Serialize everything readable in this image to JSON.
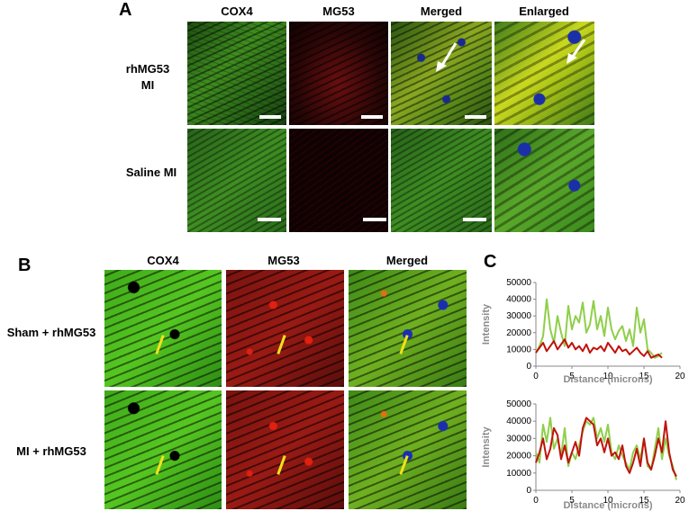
{
  "panel_a": {
    "letter": "A",
    "columns": [
      "COX4",
      "MG53",
      "Merged",
      "Enlarged"
    ],
    "rows": [
      {
        "label_line1": "rhMG53",
        "label_line2": "MI"
      },
      {
        "label_line1": "Saline MI",
        "label_line2": ""
      }
    ]
  },
  "panel_b": {
    "letter": "B",
    "columns": [
      "COX4",
      "MG53",
      "Merged"
    ],
    "rows": [
      {
        "label": "Sham + rhMG53"
      },
      {
        "label": "MI + rhMG53"
      }
    ]
  },
  "panel_c": {
    "letter": "C"
  },
  "colors": {
    "green_series": "#8fcf4a",
    "red_series": "#c0120c",
    "axis": "#888888"
  },
  "chart_data": [
    {
      "type": "line",
      "xlabel": "Distance (microns)",
      "ylabel": "Intensity",
      "xlim": [
        0,
        20
      ],
      "ylim": [
        0,
        50000
      ],
      "xticks": [
        0,
        5,
        10,
        15,
        20
      ],
      "yticks": [
        0,
        10000,
        20000,
        30000,
        40000,
        50000
      ],
      "grid": false,
      "series": [
        {
          "color": "#8fcf4a",
          "x": [
            0,
            0.5,
            1,
            1.5,
            2,
            2.5,
            3,
            3.5,
            4,
            4.5,
            5,
            5.5,
            6,
            6.5,
            7,
            7.5,
            8,
            8.5,
            9,
            9.5,
            10,
            10.5,
            11,
            11.5,
            12,
            12.5,
            13,
            13.5,
            14,
            14.5,
            15,
            15.5,
            16,
            16.5,
            17,
            17.5
          ],
          "values": [
            8000,
            12000,
            18000,
            40000,
            22000,
            14000,
            30000,
            20000,
            12000,
            36000,
            22000,
            30000,
            26000,
            38000,
            20000,
            25000,
            39000,
            22000,
            30000,
            18000,
            35000,
            22000,
            16000,
            21000,
            24000,
            15000,
            22000,
            12000,
            35000,
            20000,
            28000,
            10000,
            8000,
            5000,
            6000,
            8000
          ]
        },
        {
          "color": "#c0120c",
          "x": [
            0,
            0.5,
            1,
            1.5,
            2,
            2.5,
            3,
            3.5,
            4,
            4.5,
            5,
            5.5,
            6,
            6.5,
            7,
            7.5,
            8,
            8.5,
            9,
            9.5,
            10,
            10.5,
            11,
            11.5,
            12,
            12.5,
            13,
            13.5,
            14,
            14.5,
            15,
            15.5,
            16,
            16.5,
            17,
            17.5
          ],
          "values": [
            8000,
            11000,
            14000,
            9000,
            12000,
            15000,
            10000,
            13000,
            16000,
            11000,
            14000,
            10000,
            12000,
            9000,
            13000,
            8000,
            11000,
            10000,
            12000,
            9000,
            14000,
            11000,
            8000,
            12000,
            9000,
            10000,
            7000,
            9000,
            11000,
            8000,
            6000,
            9000,
            5000,
            6000,
            7000,
            5000
          ]
        }
      ]
    },
    {
      "type": "line",
      "xlabel": "Distance (microns)",
      "ylabel": "Intensity",
      "xlim": [
        0,
        20
      ],
      "ylim": [
        0,
        50000
      ],
      "xticks": [
        0,
        5,
        10,
        15,
        20
      ],
      "yticks": [
        0,
        10000,
        20000,
        30000,
        40000,
        50000
      ],
      "grid": false,
      "series": [
        {
          "color": "#8fcf4a",
          "x": [
            0,
            0.5,
            1,
            1.5,
            2,
            2.5,
            3,
            3.5,
            4,
            4.5,
            5,
            5.5,
            6,
            6.5,
            7,
            7.5,
            8,
            8.5,
            9,
            9.5,
            10,
            10.5,
            11,
            11.5,
            12,
            12.5,
            13,
            13.5,
            14,
            14.5,
            15,
            15.5,
            16,
            16.5,
            17,
            17.5,
            18,
            18.5,
            19,
            19.5
          ],
          "values": [
            22000,
            16000,
            38000,
            28000,
            42000,
            24000,
            30000,
            20000,
            36000,
            14000,
            22000,
            18000,
            26000,
            34000,
            40000,
            38000,
            42000,
            30000,
            36000,
            28000,
            38000,
            22000,
            18000,
            26000,
            20000,
            16000,
            12000,
            22000,
            26000,
            18000,
            30000,
            14000,
            12000,
            24000,
            36000,
            18000,
            30000,
            20000,
            14000,
            6000
          ]
        },
        {
          "color": "#c0120c",
          "x": [
            0,
            0.5,
            1,
            1.5,
            2,
            2.5,
            3,
            3.5,
            4,
            4.5,
            5,
            5.5,
            6,
            6.5,
            7,
            7.5,
            8,
            8.5,
            9,
            9.5,
            10,
            10.5,
            11,
            11.5,
            12,
            12.5,
            13,
            13.5,
            14,
            14.5,
            15,
            15.5,
            16,
            16.5,
            17,
            17.5,
            18,
            18.5,
            19,
            19.5
          ],
          "values": [
            16000,
            22000,
            30000,
            18000,
            24000,
            36000,
            32000,
            18000,
            26000,
            16000,
            22000,
            28000,
            20000,
            36000,
            42000,
            40000,
            38000,
            26000,
            30000,
            22000,
            30000,
            20000,
            22000,
            18000,
            26000,
            14000,
            10000,
            16000,
            24000,
            14000,
            30000,
            16000,
            12000,
            20000,
            30000,
            22000,
            40000,
            22000,
            12000,
            8000
          ]
        }
      ]
    }
  ]
}
